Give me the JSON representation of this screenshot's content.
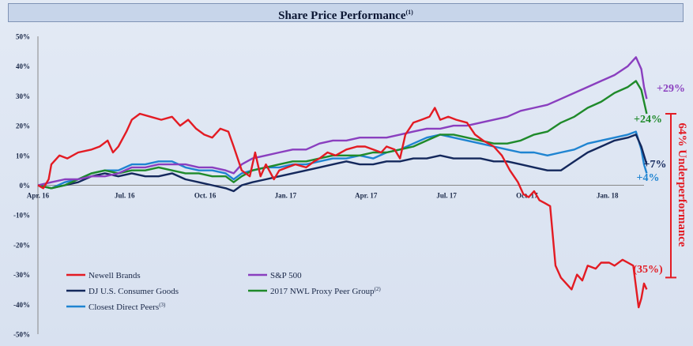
{
  "page": {
    "title": "Share Price Performance",
    "title_sup": "(1)"
  },
  "chart_data": {
    "type": "line",
    "title": "Share Price Performance",
    "xlabel": "",
    "ylabel": "",
    "ylim": [
      -50,
      50
    ],
    "yticks": [
      50,
      40,
      30,
      20,
      10,
      0,
      -10,
      -20,
      -30,
      -40,
      -50
    ],
    "yticklabels": [
      "50%",
      "40%",
      "30%",
      "20%",
      "10%",
      "0%",
      "-10%",
      "-20%",
      "-30%",
      "-40%",
      "-50%"
    ],
    "xticks": [
      {
        "label": "Apr. 16",
        "month": 0
      },
      {
        "label": "Jul. 16",
        "month": 3
      },
      {
        "label": "Oct. 16",
        "month": 6
      },
      {
        "label": "Jan. 17",
        "month": 9
      },
      {
        "label": "Apr. 17",
        "month": 12
      },
      {
        "label": "Jul. 17",
        "month": 15
      },
      {
        "label": "Oct. 17",
        "month": 18
      },
      {
        "label": "Jan. 18",
        "month": 21
      }
    ],
    "xlim_months": [
      0,
      22.6
    ],
    "grid": false,
    "series": [
      {
        "name": "Newell Brands",
        "color": "#e31b23",
        "points": [
          [
            0,
            0
          ],
          [
            0.2,
            -1
          ],
          [
            0.4,
            2
          ],
          [
            0.5,
            7
          ],
          [
            0.8,
            10
          ],
          [
            1.1,
            9
          ],
          [
            1.5,
            11
          ],
          [
            2,
            12
          ],
          [
            2.3,
            13
          ],
          [
            2.6,
            15
          ],
          [
            2.8,
            11
          ],
          [
            3,
            13
          ],
          [
            3.3,
            18
          ],
          [
            3.5,
            22
          ],
          [
            3.8,
            24
          ],
          [
            4.2,
            23
          ],
          [
            4.6,
            22
          ],
          [
            5,
            23
          ],
          [
            5.3,
            20
          ],
          [
            5.6,
            22
          ],
          [
            5.9,
            19
          ],
          [
            6.2,
            17
          ],
          [
            6.5,
            16
          ],
          [
            6.8,
            19
          ],
          [
            7.1,
            18
          ],
          [
            7.3,
            13
          ],
          [
            7.6,
            5
          ],
          [
            7.9,
            3
          ],
          [
            8.1,
            11
          ],
          [
            8.3,
            3
          ],
          [
            8.5,
            7
          ],
          [
            8.8,
            2
          ],
          [
            9,
            5
          ],
          [
            9.3,
            6
          ],
          [
            9.6,
            7
          ],
          [
            10,
            6
          ],
          [
            10.3,
            8
          ],
          [
            10.5,
            9
          ],
          [
            10.8,
            11
          ],
          [
            11.1,
            10
          ],
          [
            11.5,
            12
          ],
          [
            11.9,
            13
          ],
          [
            12.2,
            13
          ],
          [
            12.5,
            12
          ],
          [
            12.8,
            11
          ],
          [
            13,
            13
          ],
          [
            13.3,
            12
          ],
          [
            13.5,
            9
          ],
          [
            13.7,
            17
          ],
          [
            14,
            21
          ],
          [
            14.3,
            22
          ],
          [
            14.6,
            23
          ],
          [
            14.8,
            26
          ],
          [
            15,
            22
          ],
          [
            15.3,
            23
          ],
          [
            15.6,
            22
          ],
          [
            16,
            21
          ],
          [
            16.3,
            17
          ],
          [
            16.6,
            15
          ],
          [
            17,
            13
          ],
          [
            17.3,
            10
          ],
          [
            17.6,
            5
          ],
          [
            17.9,
            1
          ],
          [
            18.1,
            -3
          ],
          [
            18.3,
            -4
          ],
          [
            18.5,
            -2
          ],
          [
            18.7,
            -5
          ],
          [
            18.9,
            -6
          ],
          [
            19.1,
            -7
          ],
          [
            19.3,
            -27
          ],
          [
            19.5,
            -31
          ],
          [
            19.7,
            -33
          ],
          [
            19.9,
            -35
          ],
          [
            20.1,
            -30
          ],
          [
            20.3,
            -32
          ],
          [
            20.5,
            -27
          ],
          [
            20.8,
            -28
          ],
          [
            21,
            -26
          ],
          [
            21.3,
            -26
          ],
          [
            21.5,
            -27
          ],
          [
            21.8,
            -25
          ],
          [
            22,
            -26
          ],
          [
            22.2,
            -27
          ],
          [
            22.4,
            -41
          ],
          [
            22.5,
            -38
          ],
          [
            22.6,
            -33
          ],
          [
            22.7,
            -35
          ]
        ]
      },
      {
        "name": "S&P 500",
        "color": "#8a3fbf",
        "points": [
          [
            0,
            0
          ],
          [
            0.5,
            1
          ],
          [
            1,
            2
          ],
          [
            1.5,
            2
          ],
          [
            2,
            3
          ],
          [
            2.5,
            3
          ],
          [
            3,
            4
          ],
          [
            3.5,
            6
          ],
          [
            4,
            6
          ],
          [
            4.5,
            7
          ],
          [
            5,
            7
          ],
          [
            5.5,
            7
          ],
          [
            6,
            6
          ],
          [
            6.5,
            6
          ],
          [
            7,
            5
          ],
          [
            7.3,
            4
          ],
          [
            7.6,
            7
          ],
          [
            8,
            9
          ],
          [
            8.5,
            10
          ],
          [
            9,
            11
          ],
          [
            9.5,
            12
          ],
          [
            10,
            12
          ],
          [
            10.5,
            14
          ],
          [
            11,
            15
          ],
          [
            11.5,
            15
          ],
          [
            12,
            16
          ],
          [
            12.5,
            16
          ],
          [
            13,
            16
          ],
          [
            13.5,
            17
          ],
          [
            14,
            18
          ],
          [
            14.5,
            19
          ],
          [
            15,
            19
          ],
          [
            15.5,
            20
          ],
          [
            16,
            20
          ],
          [
            16.5,
            21
          ],
          [
            17,
            22
          ],
          [
            17.5,
            23
          ],
          [
            18,
            25
          ],
          [
            18.5,
            26
          ],
          [
            19,
            27
          ],
          [
            19.5,
            29
          ],
          [
            20,
            31
          ],
          [
            20.5,
            33
          ],
          [
            21,
            35
          ],
          [
            21.5,
            37
          ],
          [
            22,
            40
          ],
          [
            22.3,
            43
          ],
          [
            22.5,
            39
          ],
          [
            22.6,
            33
          ],
          [
            22.7,
            29
          ]
        ]
      },
      {
        "name": "DJ U.S. Consumer Goods",
        "color": "#14285c",
        "points": [
          [
            0,
            0
          ],
          [
            0.5,
            -1
          ],
          [
            1,
            0
          ],
          [
            1.5,
            1
          ],
          [
            2,
            3
          ],
          [
            2.5,
            4
          ],
          [
            3,
            3
          ],
          [
            3.5,
            4
          ],
          [
            4,
            3
          ],
          [
            4.5,
            3
          ],
          [
            5,
            4
          ],
          [
            5.5,
            2
          ],
          [
            6,
            1
          ],
          [
            6.5,
            0
          ],
          [
            7,
            -1
          ],
          [
            7.3,
            -2
          ],
          [
            7.6,
            0
          ],
          [
            8,
            1
          ],
          [
            8.5,
            2
          ],
          [
            9,
            3
          ],
          [
            9.5,
            4
          ],
          [
            10,
            5
          ],
          [
            10.5,
            6
          ],
          [
            11,
            7
          ],
          [
            11.5,
            8
          ],
          [
            12,
            7
          ],
          [
            12.5,
            7
          ],
          [
            13,
            8
          ],
          [
            13.5,
            8
          ],
          [
            14,
            9
          ],
          [
            14.5,
            9
          ],
          [
            15,
            10
          ],
          [
            15.5,
            9
          ],
          [
            16,
            9
          ],
          [
            16.5,
            9
          ],
          [
            17,
            8
          ],
          [
            17.5,
            8
          ],
          [
            18,
            7
          ],
          [
            18.5,
            6
          ],
          [
            19,
            5
          ],
          [
            19.5,
            5
          ],
          [
            20,
            8
          ],
          [
            20.5,
            11
          ],
          [
            21,
            13
          ],
          [
            21.5,
            15
          ],
          [
            22,
            16
          ],
          [
            22.3,
            17
          ],
          [
            22.5,
            13
          ],
          [
            22.6,
            10
          ],
          [
            22.7,
            7
          ]
        ]
      },
      {
        "name": "2017 NWL Proxy Peer Group",
        "sup": "(2)",
        "color": "#1f8a2a",
        "points": [
          [
            0,
            0
          ],
          [
            0.5,
            -1
          ],
          [
            1,
            0
          ],
          [
            1.5,
            2
          ],
          [
            2,
            4
          ],
          [
            2.5,
            5
          ],
          [
            3,
            4
          ],
          [
            3.5,
            5
          ],
          [
            4,
            5
          ],
          [
            4.5,
            6
          ],
          [
            5,
            5
          ],
          [
            5.5,
            4
          ],
          [
            6,
            4
          ],
          [
            6.5,
            3
          ],
          [
            7,
            3
          ],
          [
            7.3,
            1
          ],
          [
            7.6,
            3
          ],
          [
            8,
            5
          ],
          [
            8.5,
            6
          ],
          [
            9,
            7
          ],
          [
            9.5,
            8
          ],
          [
            10,
            8
          ],
          [
            10.5,
            9
          ],
          [
            11,
            10
          ],
          [
            11.5,
            10
          ],
          [
            12,
            10
          ],
          [
            12.5,
            11
          ],
          [
            13,
            11
          ],
          [
            13.5,
            12
          ],
          [
            14,
            13
          ],
          [
            14.5,
            15
          ],
          [
            15,
            17
          ],
          [
            15.5,
            17
          ],
          [
            16,
            16
          ],
          [
            16.5,
            15
          ],
          [
            17,
            14
          ],
          [
            17.5,
            14
          ],
          [
            18,
            15
          ],
          [
            18.5,
            17
          ],
          [
            19,
            18
          ],
          [
            19.5,
            21
          ],
          [
            20,
            23
          ],
          [
            20.5,
            26
          ],
          [
            21,
            28
          ],
          [
            21.5,
            31
          ],
          [
            22,
            33
          ],
          [
            22.3,
            35
          ],
          [
            22.5,
            32
          ],
          [
            22.6,
            28
          ],
          [
            22.7,
            24
          ]
        ]
      },
      {
        "name": "Closest Direct Peers",
        "sup": "(3)",
        "color": "#1f84d1",
        "points": [
          [
            0,
            0
          ],
          [
            0.5,
            -1
          ],
          [
            1,
            1
          ],
          [
            1.5,
            2
          ],
          [
            2,
            4
          ],
          [
            2.5,
            5
          ],
          [
            3,
            5
          ],
          [
            3.5,
            7
          ],
          [
            4,
            7
          ],
          [
            4.5,
            8
          ],
          [
            5,
            8
          ],
          [
            5.5,
            6
          ],
          [
            6,
            5
          ],
          [
            6.5,
            5
          ],
          [
            7,
            4
          ],
          [
            7.3,
            2
          ],
          [
            7.6,
            4
          ],
          [
            8,
            5
          ],
          [
            8.5,
            6
          ],
          [
            9,
            6
          ],
          [
            9.5,
            7
          ],
          [
            10,
            7
          ],
          [
            10.5,
            8
          ],
          [
            11,
            9
          ],
          [
            11.5,
            9
          ],
          [
            12,
            10
          ],
          [
            12.5,
            9
          ],
          [
            13,
            11
          ],
          [
            13.5,
            12
          ],
          [
            14,
            14
          ],
          [
            14.5,
            16
          ],
          [
            15,
            17
          ],
          [
            15.5,
            16
          ],
          [
            16,
            15
          ],
          [
            16.5,
            14
          ],
          [
            17,
            13
          ],
          [
            17.5,
            12
          ],
          [
            18,
            11
          ],
          [
            18.5,
            11
          ],
          [
            19,
            10
          ],
          [
            19.5,
            11
          ],
          [
            20,
            12
          ],
          [
            20.5,
            14
          ],
          [
            21,
            15
          ],
          [
            21.5,
            16
          ],
          [
            22,
            17
          ],
          [
            22.3,
            18
          ],
          [
            22.5,
            12
          ],
          [
            22.6,
            7
          ],
          [
            22.7,
            4
          ]
        ]
      }
    ],
    "annotations": [
      {
        "text": "+29%",
        "color": "#8a3fbf",
        "series": "S&P 500"
      },
      {
        "text": "+24%",
        "color": "#1f8a2a",
        "series": "2017 NWL Proxy Peer Group"
      },
      {
        "text": "+7%",
        "color": "#14285c",
        "series": "DJ U.S. Consumer Goods"
      },
      {
        "text": "+4%",
        "color": "#1f84d1",
        "series": "Closest Direct Peers"
      },
      {
        "text": "(35%)",
        "color": "#e31b23",
        "series": "Newell Brands"
      },
      {
        "text": "64% Underperformance",
        "color": "#e31b23",
        "series": ""
      }
    ],
    "legend": "bottom-left, three rows, two columns"
  }
}
